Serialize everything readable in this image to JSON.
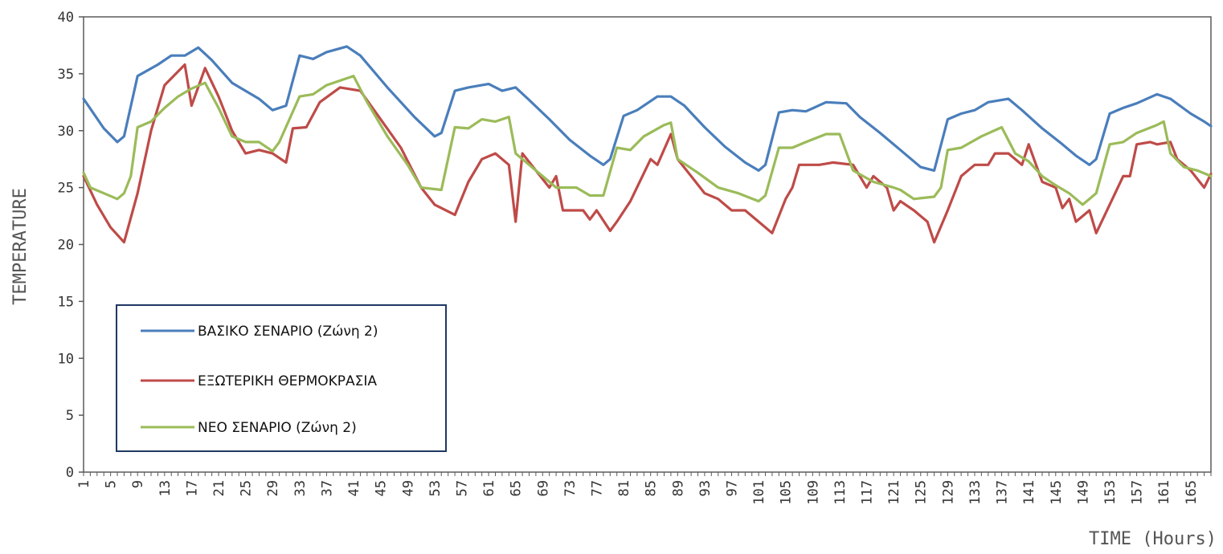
{
  "chart_data": {
    "type": "line",
    "xlabel": "TIME (Hours)",
    "ylabel": "TEMPERATURE",
    "xlim": [
      1,
      168
    ],
    "ylim": [
      0,
      40
    ],
    "yticks": [
      0,
      5,
      10,
      15,
      20,
      25,
      30,
      35,
      40
    ],
    "xticks": [
      1,
      5,
      9,
      13,
      17,
      21,
      25,
      29,
      33,
      37,
      41,
      45,
      49,
      53,
      57,
      61,
      65,
      69,
      73,
      77,
      81,
      85,
      89,
      93,
      97,
      101,
      105,
      109,
      113,
      117,
      121,
      125,
      129,
      133,
      137,
      141,
      145,
      149,
      153,
      157,
      161,
      165
    ],
    "grid": false,
    "legend_position": "lower-left",
    "series": [
      {
        "name": "ΒΑΣΙΚΟ ΣΕΝΑΡΙΟ (Ζώνη 2)",
        "color": "#4a7ebb",
        "points": [
          [
            1,
            32.8
          ],
          [
            4,
            30.2
          ],
          [
            6,
            29.0
          ],
          [
            7,
            29.5
          ],
          [
            9,
            34.8
          ],
          [
            12,
            35.8
          ],
          [
            14,
            36.6
          ],
          [
            16,
            36.6
          ],
          [
            18,
            37.3
          ],
          [
            20,
            36.2
          ],
          [
            23,
            34.2
          ],
          [
            27,
            32.8
          ],
          [
            29,
            31.8
          ],
          [
            31,
            32.2
          ],
          [
            33,
            36.6
          ],
          [
            35,
            36.3
          ],
          [
            37,
            36.9
          ],
          [
            40,
            37.4
          ],
          [
            42,
            36.6
          ],
          [
            46,
            33.8
          ],
          [
            50,
            31.2
          ],
          [
            53,
            29.5
          ],
          [
            54,
            29.8
          ],
          [
            56,
            33.5
          ],
          [
            58,
            33.8
          ],
          [
            61,
            34.1
          ],
          [
            63,
            33.5
          ],
          [
            65,
            33.8
          ],
          [
            67,
            32.7
          ],
          [
            70,
            31.0
          ],
          [
            73,
            29.2
          ],
          [
            76,
            27.8
          ],
          [
            78,
            27.0
          ],
          [
            79,
            27.5
          ],
          [
            81,
            31.3
          ],
          [
            83,
            31.8
          ],
          [
            86,
            33.0
          ],
          [
            88,
            33.0
          ],
          [
            90,
            32.2
          ],
          [
            93,
            30.3
          ],
          [
            96,
            28.6
          ],
          [
            99,
            27.2
          ],
          [
            101,
            26.5
          ],
          [
            102,
            27.0
          ],
          [
            104,
            31.6
          ],
          [
            106,
            31.8
          ],
          [
            108,
            31.7
          ],
          [
            111,
            32.5
          ],
          [
            114,
            32.4
          ],
          [
            116,
            31.2
          ],
          [
            119,
            29.8
          ],
          [
            122,
            28.3
          ],
          [
            125,
            26.8
          ],
          [
            127,
            26.5
          ],
          [
            129,
            31.0
          ],
          [
            131,
            31.5
          ],
          [
            133,
            31.8
          ],
          [
            135,
            32.5
          ],
          [
            138,
            32.8
          ],
          [
            140,
            31.8
          ],
          [
            143,
            30.2
          ],
          [
            146,
            28.8
          ],
          [
            148,
            27.8
          ],
          [
            150,
            27.0
          ],
          [
            151,
            27.5
          ],
          [
            153,
            31.5
          ],
          [
            155,
            32.0
          ],
          [
            157,
            32.4
          ],
          [
            160,
            33.2
          ],
          [
            162,
            32.8
          ],
          [
            165,
            31.5
          ],
          [
            167,
            30.8
          ],
          [
            168,
            30.4
          ]
        ]
      },
      {
        "name": "ΕΞΩΤΕΡΙΚΗ ΘΕΡΜΟΚΡΑΣΙΑ",
        "color": "#be4b48",
        "points": [
          [
            1,
            26.0
          ],
          [
            3,
            23.5
          ],
          [
            5,
            21.5
          ],
          [
            7,
            20.2
          ],
          [
            9,
            24.5
          ],
          [
            11,
            30.0
          ],
          [
            13,
            34.0
          ],
          [
            16,
            35.8
          ],
          [
            17,
            32.2
          ],
          [
            19,
            35.5
          ],
          [
            21,
            33.0
          ],
          [
            23,
            30.0
          ],
          [
            25,
            28.0
          ],
          [
            27,
            28.3
          ],
          [
            29,
            28.0
          ],
          [
            31,
            27.2
          ],
          [
            32,
            30.2
          ],
          [
            34,
            30.3
          ],
          [
            36,
            32.5
          ],
          [
            39,
            33.8
          ],
          [
            42,
            33.5
          ],
          [
            45,
            31.0
          ],
          [
            48,
            28.5
          ],
          [
            51,
            25.0
          ],
          [
            53,
            23.5
          ],
          [
            56,
            22.6
          ],
          [
            58,
            25.5
          ],
          [
            60,
            27.5
          ],
          [
            62,
            28.0
          ],
          [
            64,
            27.0
          ],
          [
            65,
            22.0
          ],
          [
            66,
            28.0
          ],
          [
            68,
            26.5
          ],
          [
            70,
            25.0
          ],
          [
            71,
            26.0
          ],
          [
            72,
            23.0
          ],
          [
            75,
            23.0
          ],
          [
            76,
            22.2
          ],
          [
            77,
            23.0
          ],
          [
            79,
            21.2
          ],
          [
            80,
            22.0
          ],
          [
            82,
            23.8
          ],
          [
            85,
            27.5
          ],
          [
            86,
            27.0
          ],
          [
            88,
            29.7
          ],
          [
            89,
            27.5
          ],
          [
            91,
            26.0
          ],
          [
            93,
            24.5
          ],
          [
            95,
            24.0
          ],
          [
            97,
            23.0
          ],
          [
            99,
            23.0
          ],
          [
            101,
            22.0
          ],
          [
            103,
            21.0
          ],
          [
            105,
            24.0
          ],
          [
            106,
            25.0
          ],
          [
            107,
            27.0
          ],
          [
            110,
            27.0
          ],
          [
            112,
            27.2
          ],
          [
            115,
            27.0
          ],
          [
            117,
            25.0
          ],
          [
            118,
            26.0
          ],
          [
            120,
            25.0
          ],
          [
            121,
            23.0
          ],
          [
            122,
            23.8
          ],
          [
            124,
            23.0
          ],
          [
            126,
            22.0
          ],
          [
            127,
            20.2
          ],
          [
            129,
            23.0
          ],
          [
            131,
            26.0
          ],
          [
            133,
            27.0
          ],
          [
            135,
            27.0
          ],
          [
            136,
            28.0
          ],
          [
            138,
            28.0
          ],
          [
            140,
            27.0
          ],
          [
            141,
            28.8
          ],
          [
            143,
            25.5
          ],
          [
            145,
            25.0
          ],
          [
            146,
            23.2
          ],
          [
            147,
            24.0
          ],
          [
            148,
            22.0
          ],
          [
            150,
            23.0
          ],
          [
            151,
            21.0
          ],
          [
            153,
            23.5
          ],
          [
            155,
            26.0
          ],
          [
            156,
            26.0
          ],
          [
            157,
            28.8
          ],
          [
            159,
            29.0
          ],
          [
            160,
            28.8
          ],
          [
            162,
            29.0
          ],
          [
            163,
            27.5
          ],
          [
            165,
            26.5
          ],
          [
            167,
            25.0
          ],
          [
            168,
            26.2
          ]
        ]
      },
      {
        "name": "ΝΕΟ ΣΕΝΑΡΙΟ (Ζώνη 2)",
        "color": "#9bbb59",
        "points": [
          [
            1,
            26.3
          ],
          [
            2,
            25.0
          ],
          [
            4,
            24.5
          ],
          [
            6,
            24.0
          ],
          [
            7,
            24.5
          ],
          [
            8,
            26.0
          ],
          [
            9,
            30.3
          ],
          [
            11,
            30.8
          ],
          [
            13,
            32.0
          ],
          [
            15,
            33.0
          ],
          [
            17,
            33.7
          ],
          [
            19,
            34.2
          ],
          [
            21,
            32.0
          ],
          [
            23,
            29.5
          ],
          [
            25,
            29.0
          ],
          [
            27,
            29.0
          ],
          [
            29,
            28.2
          ],
          [
            30,
            29.0
          ],
          [
            33,
            33.0
          ],
          [
            35,
            33.2
          ],
          [
            37,
            34.0
          ],
          [
            40,
            34.6
          ],
          [
            41,
            34.8
          ],
          [
            43,
            32.5
          ],
          [
            46,
            29.5
          ],
          [
            49,
            27.0
          ],
          [
            51,
            25.0
          ],
          [
            54,
            24.8
          ],
          [
            56,
            30.3
          ],
          [
            58,
            30.2
          ],
          [
            60,
            31.0
          ],
          [
            62,
            30.8
          ],
          [
            64,
            31.2
          ],
          [
            65,
            28.0
          ],
          [
            67,
            27.0
          ],
          [
            69,
            26.0
          ],
          [
            71,
            25.0
          ],
          [
            74,
            25.0
          ],
          [
            76,
            24.3
          ],
          [
            78,
            24.3
          ],
          [
            80,
            28.5
          ],
          [
            82,
            28.3
          ],
          [
            84,
            29.5
          ],
          [
            87,
            30.5
          ],
          [
            88,
            30.7
          ],
          [
            89,
            27.5
          ],
          [
            92,
            26.3
          ],
          [
            95,
            25.0
          ],
          [
            98,
            24.5
          ],
          [
            101,
            23.8
          ],
          [
            102,
            24.3
          ],
          [
            104,
            28.5
          ],
          [
            106,
            28.5
          ],
          [
            108,
            29.0
          ],
          [
            111,
            29.7
          ],
          [
            113,
            29.7
          ],
          [
            115,
            26.5
          ],
          [
            118,
            25.5
          ],
          [
            121,
            25.0
          ],
          [
            122,
            24.8
          ],
          [
            124,
            24.0
          ],
          [
            127,
            24.2
          ],
          [
            128,
            25.0
          ],
          [
            129,
            28.3
          ],
          [
            131,
            28.5
          ],
          [
            134,
            29.5
          ],
          [
            137,
            30.3
          ],
          [
            139,
            28.0
          ],
          [
            141,
            27.3
          ],
          [
            143,
            26.0
          ],
          [
            145,
            25.2
          ],
          [
            147,
            24.5
          ],
          [
            149,
            23.5
          ],
          [
            151,
            24.5
          ],
          [
            153,
            28.8
          ],
          [
            155,
            29.0
          ],
          [
            157,
            29.8
          ],
          [
            160,
            30.5
          ],
          [
            161,
            30.8
          ],
          [
            162,
            28.0
          ],
          [
            164,
            26.8
          ],
          [
            166,
            26.5
          ],
          [
            168,
            26.0
          ]
        ]
      }
    ]
  }
}
